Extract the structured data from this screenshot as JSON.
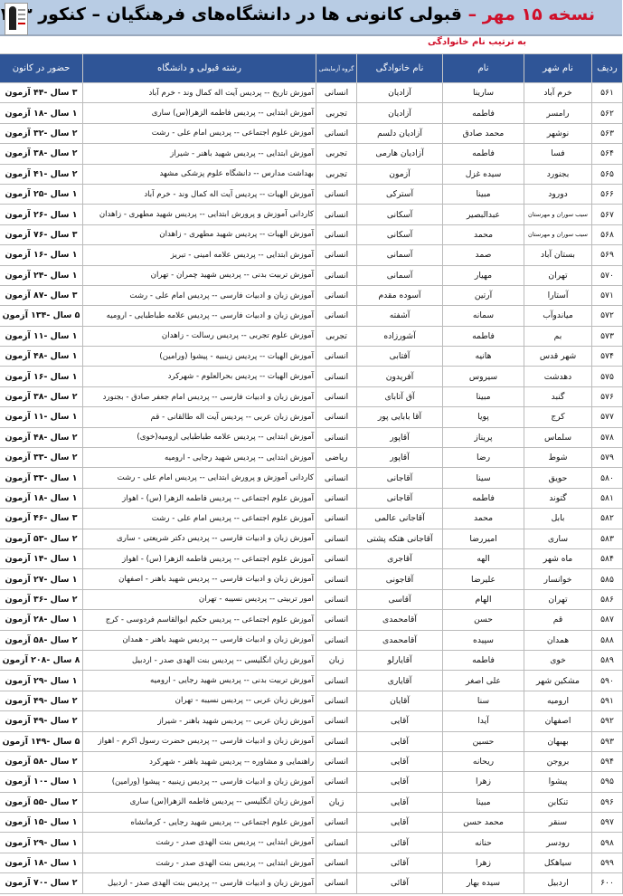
{
  "header": {
    "title_prefix": "نسخه ۱۵ مهر –",
    "title_main": "قبولی کانونی ها در  دانشگاه‌های فرهنگیان – کنکور ۱۴۰۳",
    "subtitle": "به ترتیب نام خانوادگی",
    "accent_color": "#d0102a",
    "band_color": "#b8cce4"
  },
  "table": {
    "header_color": "#2f5597",
    "columns": [
      "ردیف",
      "نام شهر",
      "نام",
      "نام خانوادگی",
      "گروه آزمایشی",
      "رشته قبولی و دانشگاه",
      "حضور در کانون"
    ],
    "rows": [
      [
        "۵۶۱",
        "خرم آباد",
        "سارینا",
        "آزادیان",
        "انسانی",
        "آموزش تاریخ -- پردیس آیت اله کمال وند - خرم آباد",
        "۳ سال -۴۴ آزمون"
      ],
      [
        "۵۶۲",
        "رامسر",
        "فاطمه",
        "آزادیان",
        "تجربی",
        "آموزش ابتدایی -- پردیس فاطمه الزهرا(س) ساری",
        "۱ سال -۱۸ آزمون"
      ],
      [
        "۵۶۳",
        "نوشهر",
        "محمد صادق",
        "آزادیان دلسم",
        "انسانی",
        "آموزش علوم اجتماعی -- پردیس امام علی - رشت",
        "۲ سال -۳۲ آزمون"
      ],
      [
        "۵۶۴",
        "فسا",
        "فاطمه",
        "آزادیان هارمی",
        "تجربی",
        "آموزش ابتدایی -- پردیس شهید باهنر - شیراز",
        "۲ سال -۳۸ آزمون"
      ],
      [
        "۵۶۵",
        "بجنورد",
        "سیده غزل",
        "آزمون",
        "تجربی",
        "بهداشت مدارس -- دانشگاه علوم پزشکی مشهد",
        "۲ سال -۴۱ آزمون"
      ],
      [
        "۵۶۶",
        "دورود",
        "مبینا",
        "آسترکی",
        "انسانی",
        "آموزش الهیات -- پردیس آیت اله کمال وند - خرم آباد",
        "۱ سال -۲۵ آزمون"
      ],
      [
        "۵۶۷",
        "سیب سوران و مهرستان",
        "عبدالبصیر",
        "آسکانی",
        "انسانی",
        "کاردانی آموزش و پرورش ابتدایی -- پردیس شهید مطهری - زاهدان",
        "۱ سال -۲۶ آزمون"
      ],
      [
        "۵۶۸",
        "سیب سوران و مهرستان",
        "محمد",
        "آسکانی",
        "انسانی",
        "آموزش الهیات -- پردیس شهید مطهری - زاهدان",
        "۳ سال -۷۶ آزمون"
      ],
      [
        "۵۶۹",
        "بستان آباد",
        "صمد",
        "آسمانی",
        "انسانی",
        "آموزش ابتدایی -- پردیس علامه امینی - تبریز",
        "۱ سال -۱۶ آزمون"
      ],
      [
        "۵۷۰",
        "تهران",
        "مهیار",
        "آسمانی",
        "انسانی",
        "آموزش تربیت بدنی -- پردیس شهید چمران - تهران",
        "۱ سال -۲۴ آزمون"
      ],
      [
        "۵۷۱",
        "آستارا",
        "آرتین",
        "آسوده مقدم",
        "انسانی",
        "آموزش زبان و ادبیات فارسی -- پردیس امام علی - رشت",
        "۳ سال -۸۷ آزمون"
      ],
      [
        "۵۷۲",
        "میاندوآب",
        "سمانه",
        "آشفته",
        "انسانی",
        "آموزش زبان و ادبیات فارسی -- پردیس علامه طباطبایی - ارومیه",
        "۵ سال -۱۳۴ آزمون"
      ],
      [
        "۵۷۳",
        "بم",
        "فاطمه",
        "آشورزاده",
        "تجربی",
        "آموزش علوم تجربی -- پردیس رسالت - زاهدان",
        "۱ سال -۱۱ آزمون"
      ],
      [
        "۵۷۴",
        "شهر قدس",
        "هانیه",
        "آفتابی",
        "انسانی",
        "آموزش الهیات -- پردیس زینبیه - پیشوا (ورامین)",
        "۱ سال -۴۸ آزمون"
      ],
      [
        "۵۷۵",
        "دهدشت",
        "سیروس",
        "آفریدون",
        "انسانی",
        "آموزش الهیات -- پردیس بحرالعلوم - شهرکرد",
        "۱ سال -۱۶ آزمون"
      ],
      [
        "۵۷۶",
        "گنبد",
        "مبینا",
        "آق آتابای",
        "انسانی",
        "آموزش زبان و ادبیات فارسی -- پردیس امام جعفر صادق - بجنورد",
        "۲ سال -۳۸ آزمون"
      ],
      [
        "۵۷۷",
        "کرج",
        "پویا",
        "آقا بابایی پور",
        "انسانی",
        "آموزش زبان عربی -- پردیس آیت اله طالقانی - قم",
        "۱ سال -۱۱ آزمون"
      ],
      [
        "۵۷۸",
        "سلماس",
        "پریناز",
        "آقاپور",
        "انسانی",
        "آموزش ابتدایی -- پردیس علامه طباطبایی ارومیه(خوی)",
        "۲ سال -۴۸ آزمون"
      ],
      [
        "۵۷۹",
        "شوط",
        "رضا",
        "آقاپور",
        "ریاضی",
        "آموزش ابتدایی -- پردیس شهید رجایی - ارومیه",
        "۲ سال -۳۳ آزمون"
      ],
      [
        "۵۸۰",
        "حویق",
        "سینا",
        "آقاجانی",
        "انسانی",
        "کاردانی آموزش و پرورش ابتدایی -- پردیس امام علی - رشت",
        "۱ سال -۳۳ آزمون"
      ],
      [
        "۵۸۱",
        "گتوند",
        "فاطمه",
        "آقاجانی",
        "انسانی",
        "آموزش علوم اجتماعی -- پردیس فاطمه الزهرا (س) - اهواز",
        "۱ سال -۱۸ آزمون"
      ],
      [
        "۵۸۲",
        "بابل",
        "محمد",
        "آقاجانی عالمی",
        "انسانی",
        "آموزش علوم اجتماعی -- پردیس امام علی - رشت",
        "۳ سال -۴۶ آزمون"
      ],
      [
        "۵۸۳",
        "ساری",
        "امیررضا",
        "آقاجانی هتکه پشتی",
        "انسانی",
        "آموزش زبان و ادبیات فارسی -- پردیس دکتر شریعتی - ساری",
        "۲ سال -۵۳ آزمون"
      ],
      [
        "۵۸۴",
        "ماه شهر",
        "الهه",
        "آقاجری",
        "انسانی",
        "آموزش علوم اجتماعی -- پردیس فاطمه الزهرا (س) - اهواز",
        "۱ سال -۱۴ آزمون"
      ],
      [
        "۵۸۵",
        "خوانسار",
        "علیرضا",
        "آقاجونی",
        "انسانی",
        "آموزش زبان و ادبیات فارسی -- پردیس شهید باهنر - اصفهان",
        "۱ سال -۲۷ آزمون"
      ],
      [
        "۵۸۶",
        "تهران",
        "الهام",
        "آقاسی",
        "انسانی",
        "امور تربیتی -- پردیس نسیبه - تهران",
        "۲ سال -۳۶ آزمون"
      ],
      [
        "۵۸۷",
        "قم",
        "حسن",
        "آقامحمدی",
        "انسانی",
        "آموزش علوم اجتماعی -- پردیس حکیم ابوالقاسم فردوسی - کرج",
        "۱ سال -۲۸ آزمون"
      ],
      [
        "۵۸۸",
        "همدان",
        "سپیده",
        "آقامحمدی",
        "انسانی",
        "آموزش زبان و ادبیات فارسی -- پردیس شهید باهنر - همدان",
        "۲ سال -۵۸ آزمون"
      ],
      [
        "۵۸۹",
        "خوی",
        "فاطمه",
        "آقایارلو",
        "زبان",
        "آموزش زبان انگلیسی -- پردیس بنت الهدی صدر - اردبیل",
        "۸ سال -۲۰۸ آزمون"
      ],
      [
        "۵۹۰",
        "مشکین شهر",
        "علی اصغر",
        "آقایاری",
        "انسانی",
        "آموزش تربیت بدنی -- پردیس شهید رجایی - ارومیه",
        "۱ سال -۲۹ آزمون"
      ],
      [
        "۵۹۱",
        "ارومیه",
        "سنا",
        "آقایان",
        "انسانی",
        "آموزش زبان عربی -- پردیس نسیبه - تهران",
        "۲ سال -۴۹ آزمون"
      ],
      [
        "۵۹۲",
        "اصفهان",
        "آیدا",
        "آقایی",
        "انسانی",
        "آموزش زبان عربی -- پردیس شهید باهنر - شیراز",
        "۲ سال -۴۹ آزمون"
      ],
      [
        "۵۹۳",
        "بهبهان",
        "حسین",
        "آقایی",
        "انسانی",
        "آموزش زبان و ادبیات فارسی -- پردیس حضرت رسول اکرم - اهواز",
        "۵ سال -۱۴۹ آزمون"
      ],
      [
        "۵۹۴",
        "بروجن",
        "ریحانه",
        "آقایی",
        "انسانی",
        "راهنمایی و مشاوره -- پردیس شهید باهنر - شهرکرد",
        "۲ سال -۵۸ آزمون"
      ],
      [
        "۵۹۵",
        "پیشوا",
        "زهرا",
        "آقایی",
        "انسانی",
        "آموزش زبان و ادبیات فارسی -- پردیس زینبیه - پیشوا (ورامین)",
        "۱ سال -۱۰ آزمون"
      ],
      [
        "۵۹۶",
        "تنکابن",
        "مبینا",
        "آقایی",
        "زبان",
        "آموزش زبان انگلیسی -- پردیس فاطمه الزهرا(س) ساری",
        "۲ سال -۵۵ آزمون"
      ],
      [
        "۵۹۷",
        "سنقر",
        "محمد حسن",
        "آقایی",
        "انسانی",
        "آموزش علوم اجتماعی -- پردیس شهید رجایی - کرمانشاه",
        "۱ سال -۱۵ آزمون"
      ],
      [
        "۵۹۸",
        "رودسر",
        "حنانه",
        "آقائی",
        "انسانی",
        "آموزش ابتدایی -- پردیس بنت الهدی صدر - رشت",
        "۱ سال -۲۹ آزمون"
      ],
      [
        "۵۹۹",
        "سیاهکل",
        "زهرا",
        "آقائی",
        "انسانی",
        "آموزش ابتدایی -- پردیس بنت الهدی صدر - رشت",
        "۱ سال -۱۸ آزمون"
      ],
      [
        "۶۰۰",
        "اردبیل",
        "سیده بهار",
        "آقائی",
        "انسانی",
        "آموزش زبان و ادبیات فارسی -- پردیس بنت الهدی صدر - اردبیل",
        "۲ سال -۷۰ آزمون"
      ]
    ]
  }
}
